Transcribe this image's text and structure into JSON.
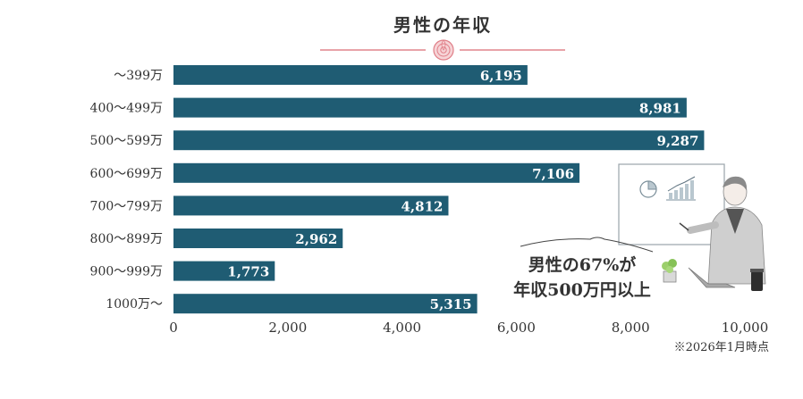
{
  "title": "男性の年収",
  "note": "※2026年1月時点",
  "callout": {
    "line1": "男性の67%が",
    "line2": "年収500万円以上"
  },
  "colors": {
    "bar": "#1f5c73",
    "accent": "#e8a3a8",
    "text": "#333333"
  },
  "chart_data": {
    "type": "bar",
    "orientation": "horizontal",
    "categories": [
      "～399万",
      "400～499万",
      "500～599万",
      "600～699万",
      "700～799万",
      "800～899万",
      "900～999万",
      "1000万～"
    ],
    "values": [
      6195,
      8981,
      9287,
      7106,
      4812,
      2962,
      1773,
      5315
    ],
    "value_labels": [
      "6,195",
      "8,981",
      "9,287",
      "7,106",
      "4,812",
      "2,962",
      "1,773",
      "5,315"
    ],
    "xlim": [
      0,
      10000
    ],
    "xticks": [
      0,
      2000,
      4000,
      6000,
      8000,
      10000
    ],
    "xtick_labels": [
      "0",
      "2,000",
      "4,000",
      "6,000",
      "8,000",
      "10,000"
    ],
    "grid": false
  }
}
